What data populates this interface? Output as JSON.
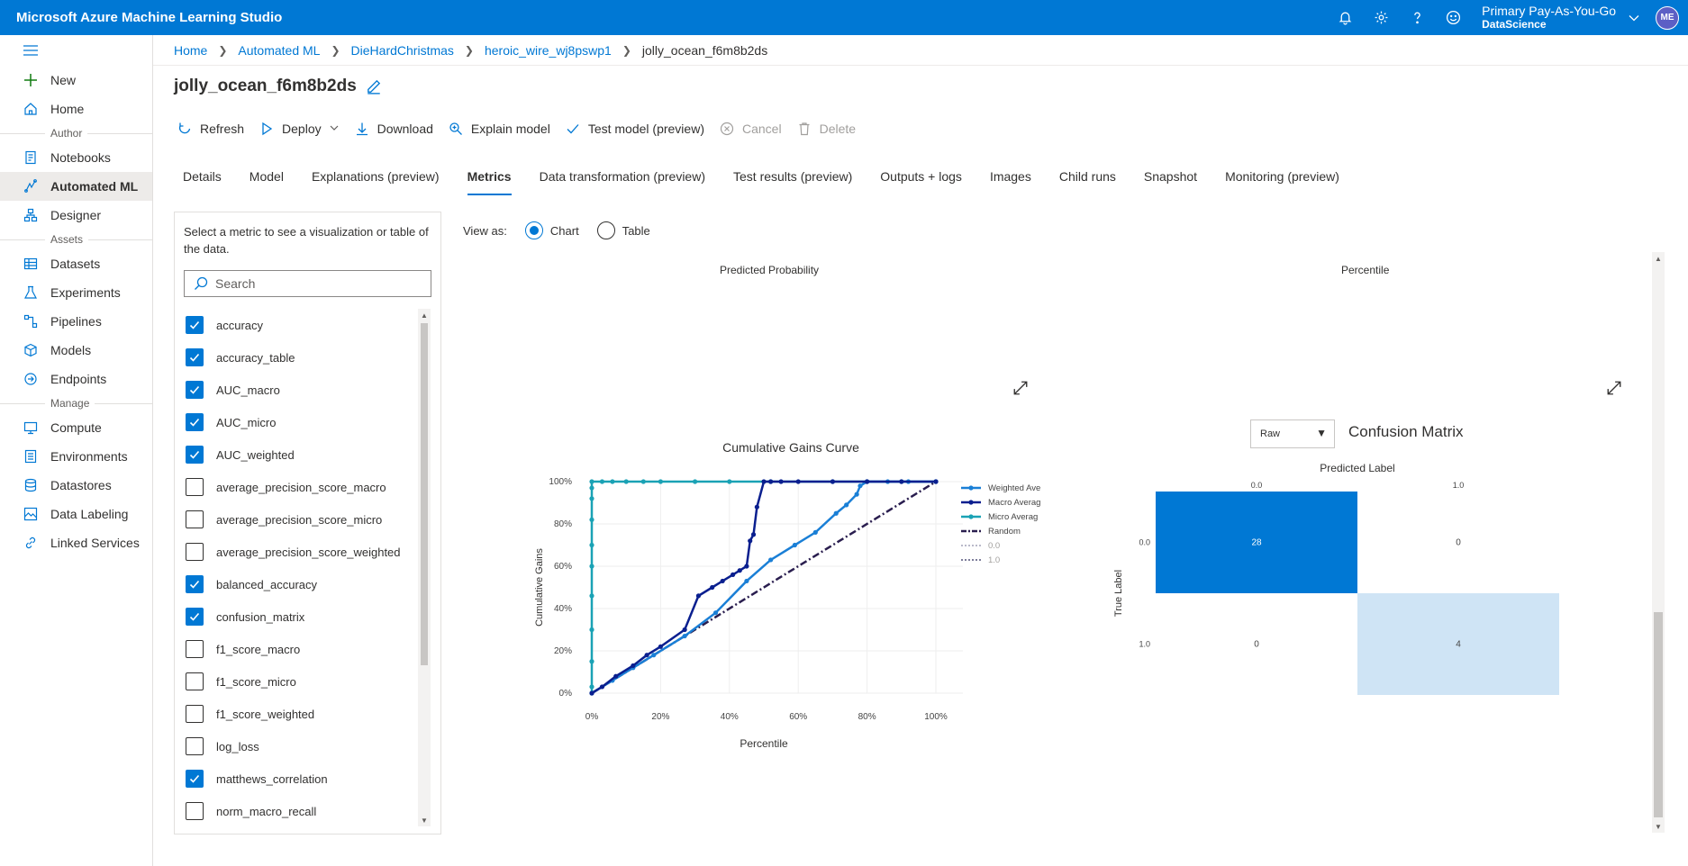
{
  "app": {
    "title": "Microsoft Azure Machine Learning Studio"
  },
  "account": {
    "subscription": "Primary Pay-As-You-Go",
    "workspace": "DataScience",
    "initials": "ME"
  },
  "nav": {
    "items_top": [
      {
        "label": "New",
        "icon": "plus-icon"
      },
      {
        "label": "Home",
        "icon": "home-icon"
      }
    ],
    "section_author": "Author",
    "items_author": [
      {
        "label": "Notebooks",
        "icon": "notebook-icon"
      },
      {
        "label": "Automated ML",
        "icon": "automl-icon"
      },
      {
        "label": "Designer",
        "icon": "designer-icon"
      }
    ],
    "section_assets": "Assets",
    "items_assets": [
      {
        "label": "Datasets",
        "icon": "datasets-icon"
      },
      {
        "label": "Experiments",
        "icon": "flask-icon"
      },
      {
        "label": "Pipelines",
        "icon": "pipeline-icon"
      },
      {
        "label": "Models",
        "icon": "cube-icon"
      },
      {
        "label": "Endpoints",
        "icon": "endpoint-icon"
      }
    ],
    "section_manage": "Manage",
    "items_manage": [
      {
        "label": "Compute",
        "icon": "monitor-icon"
      },
      {
        "label": "Environments",
        "icon": "environment-icon"
      },
      {
        "label": "Datastores",
        "icon": "database-icon"
      },
      {
        "label": "Data Labeling",
        "icon": "label-icon"
      },
      {
        "label": "Linked Services",
        "icon": "link-icon"
      }
    ]
  },
  "breadcrumb": [
    "Home",
    "Automated ML",
    "DieHardChristmas",
    "heroic_wire_wj8pswp1",
    "jolly_ocean_f6m8b2ds"
  ],
  "page_title": "jolly_ocean_f6m8b2ds",
  "toolbar": {
    "refresh": "Refresh",
    "deploy": "Deploy",
    "download": "Download",
    "explain": "Explain model",
    "test": "Test model (preview)",
    "cancel": "Cancel",
    "delete": "Delete"
  },
  "tabs": [
    "Details",
    "Model",
    "Explanations (preview)",
    "Metrics",
    "Data transformation (preview)",
    "Test results (preview)",
    "Outputs + logs",
    "Images",
    "Child runs",
    "Snapshot",
    "Monitoring (preview)"
  ],
  "metrics_panel": {
    "description": "Select a metric to see a visualization or table of the data.",
    "search_placeholder": "Search",
    "items": [
      {
        "label": "accuracy",
        "checked": true
      },
      {
        "label": "accuracy_table",
        "checked": true
      },
      {
        "label": "AUC_macro",
        "checked": true
      },
      {
        "label": "AUC_micro",
        "checked": true
      },
      {
        "label": "AUC_weighted",
        "checked": true
      },
      {
        "label": "average_precision_score_macro",
        "checked": false
      },
      {
        "label": "average_precision_score_micro",
        "checked": false
      },
      {
        "label": "average_precision_score_weighted",
        "checked": false
      },
      {
        "label": "balanced_accuracy",
        "checked": true
      },
      {
        "label": "confusion_matrix",
        "checked": true
      },
      {
        "label": "f1_score_macro",
        "checked": false
      },
      {
        "label": "f1_score_micro",
        "checked": false
      },
      {
        "label": "f1_score_weighted",
        "checked": false
      },
      {
        "label": "log_loss",
        "checked": false
      },
      {
        "label": "matthews_correlation",
        "checked": true
      },
      {
        "label": "norm_macro_recall",
        "checked": false
      }
    ]
  },
  "view_as": {
    "label": "View as:",
    "chart": "Chart",
    "table": "Table",
    "selected": "Chart"
  },
  "upper_labels": {
    "left": "Predicted Probability",
    "right": "Percentile"
  },
  "raw_select": "Raw",
  "chart_data": [
    {
      "type": "line",
      "title": "Cumulative Gains Curve",
      "xlabel": "Percentile",
      "ylabel": "Cumulative Gains",
      "xlim": [
        0,
        100
      ],
      "ylim": [
        0,
        100
      ],
      "x_ticks": [
        "0%",
        "20%",
        "40%",
        "60%",
        "80%",
        "100%"
      ],
      "y_ticks": [
        "0%",
        "20%",
        "40%",
        "60%",
        "80%",
        "100%"
      ],
      "legend": "right",
      "series": [
        {
          "name": "Weighted Ave",
          "color": "#1a7fd6",
          "x": [
            0,
            6,
            12,
            18,
            27,
            36,
            45,
            52,
            59,
            65,
            71,
            74,
            77,
            78,
            80,
            86,
            92,
            100
          ],
          "y": [
            0,
            6,
            12,
            18,
            27,
            38,
            53,
            63,
            70,
            76,
            85,
            89,
            94,
            98,
            100,
            100,
            100,
            100
          ]
        },
        {
          "name": "Macro Averag",
          "color": "#0a1f8f",
          "x": [
            0,
            3,
            7,
            12,
            16,
            20,
            27,
            31,
            35,
            38,
            41,
            43,
            45,
            46,
            47,
            48,
            50,
            52,
            55,
            60,
            70,
            80,
            90,
            100
          ],
          "y": [
            0,
            3,
            8,
            13,
            18,
            22,
            30,
            46,
            50,
            53,
            56,
            58,
            60,
            72,
            75,
            88,
            100,
            100,
            100,
            100,
            100,
            100,
            100,
            100
          ]
        },
        {
          "name": "Micro Averag",
          "color": "#1aa2b5",
          "x": [
            0,
            0,
            0,
            0,
            0,
            0,
            0,
            0,
            0,
            0,
            0,
            3,
            6,
            10,
            15,
            20,
            30,
            40,
            52,
            70,
            80,
            90,
            100
          ],
          "y": [
            0,
            3,
            15,
            30,
            46,
            60,
            70,
            82,
            92,
            97,
            100,
            100,
            100,
            100,
            100,
            100,
            100,
            100,
            100,
            100,
            100,
            100,
            100
          ]
        },
        {
          "name": "Random",
          "color": "#2a1e4f",
          "x": [
            0,
            100
          ],
          "y": [
            0,
            100
          ]
        },
        {
          "name": "0.0",
          "color": "#b9b9c9",
          "x": [],
          "y": []
        },
        {
          "name": "1.0",
          "color": "#7d7d9a",
          "x": [],
          "y": []
        }
      ]
    },
    {
      "type": "heatmap",
      "title": "Confusion Matrix",
      "xlabel": "Predicted Label",
      "ylabel": "True Label",
      "x_categories": [
        "0.0",
        "1.0"
      ],
      "y_categories": [
        "0.0",
        "1.0"
      ],
      "values": [
        [
          28,
          0
        ],
        [
          0,
          4
        ]
      ],
      "colors": {
        "high": "#0078d4",
        "low": "#cfe4f5",
        "zero": "#ffffff"
      }
    }
  ]
}
